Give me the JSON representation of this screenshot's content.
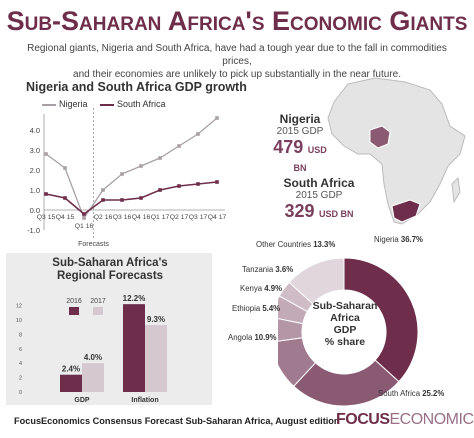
{
  "header": {
    "title": "Sub-Saharan Africa's Economic Giants",
    "subtitle_line1": "Regional giants, Nigeria and South Africa, have had a tough year due to the fall in commodities prices,",
    "subtitle_line2": "and their economies are unlikely to pick up substantially in the near future."
  },
  "colors": {
    "accent": "#6e2e4b",
    "light": "#c9b6c1",
    "grey_line": "#aaaaaa"
  },
  "map": {
    "nigeria": {
      "name": "Nigeria",
      "label": "2015 GDP",
      "value": "479",
      "unit": "USD BN"
    },
    "south_africa": {
      "name": "South Africa",
      "label": "2015 GDP",
      "value": "329",
      "unit": "USD BN"
    }
  },
  "forecasts_label": "Forecasts",
  "chart_data": [
    {
      "type": "line",
      "title": "Nigeria and South Africa GDP growth",
      "categories": [
        "Q3 15",
        "Q4 15",
        "Q1 16",
        "Q2 16",
        "Q3 16",
        "Q4 16",
        "Q1 17",
        "Q2 17",
        "Q3 17",
        "Q4 17"
      ],
      "series": [
        {
          "name": "Nigeria",
          "color": "#a9a0a5",
          "values": [
            2.8,
            2.1,
            -0.4,
            1.0,
            1.8,
            2.2,
            2.6,
            3.2,
            3.8,
            4.6
          ]
        },
        {
          "name": "South Africa",
          "color": "#6e2e4b",
          "values": [
            0.8,
            0.6,
            -0.2,
            0.5,
            0.5,
            0.6,
            1.0,
            1.2,
            1.3,
            1.4
          ]
        }
      ],
      "yticks": [
        "4.0",
        "3.0",
        "2.0",
        "1.0",
        "0.0",
        "-1.0"
      ],
      "ylim": [
        -1.0,
        4.8
      ]
    },
    {
      "type": "bar",
      "title": "Sub-Saharan Africa's Regional Forecasts",
      "categories": [
        "GDP",
        "Inflation"
      ],
      "series": [
        {
          "name": "2016",
          "color": "#6e2e4b",
          "values": [
            2.4,
            12.2
          ]
        },
        {
          "name": "2017",
          "color": "#d5c8cf",
          "values": [
            4.0,
            9.3
          ]
        }
      ],
      "value_labels": [
        [
          "2.4%",
          "12.2%"
        ],
        [
          "4.0%",
          "9.3%"
        ]
      ],
      "yticks": [
        "12",
        "10",
        "8",
        "6",
        "4",
        "2",
        "0"
      ],
      "ylim": [
        0,
        12.5
      ]
    },
    {
      "type": "pie",
      "title": "Sub-Saharan Africa GDP % share",
      "slices": [
        {
          "label": "Nigeria",
          "value": 36.7,
          "text": "36.7%",
          "color": "#6e2e4b"
        },
        {
          "label": "South Africa",
          "value": 25.2,
          "text": "25.2%",
          "color": "#8a5a72"
        },
        {
          "label": "Angola",
          "value": 10.9,
          "text": "10.9%",
          "color": "#a07a8e"
        },
        {
          "label": "Ethiopia",
          "value": 5.4,
          "text": "5.4%",
          "color": "#b497a7"
        },
        {
          "label": "Kenya",
          "value": 4.9,
          "text": "4.9%",
          "color": "#c2aab7"
        },
        {
          "label": "Tanzania",
          "value": 3.6,
          "text": "3.6%",
          "color": "#cfbcc6"
        },
        {
          "label": "Other Countries",
          "value": 13.3,
          "text": "13.3%",
          "color": "#e0d6db"
        }
      ]
    }
  ],
  "donut_center": {
    "line1": "Sub-Saharan",
    "line2": "Africa",
    "line3": "GDP",
    "line4": "% share"
  },
  "footer": {
    "text": "FocusEconomics Consensus Forecast Sub-Saharan Africa, August edition",
    "brand_bold": "FOCUS",
    "brand_light": "ECONOMICS"
  }
}
